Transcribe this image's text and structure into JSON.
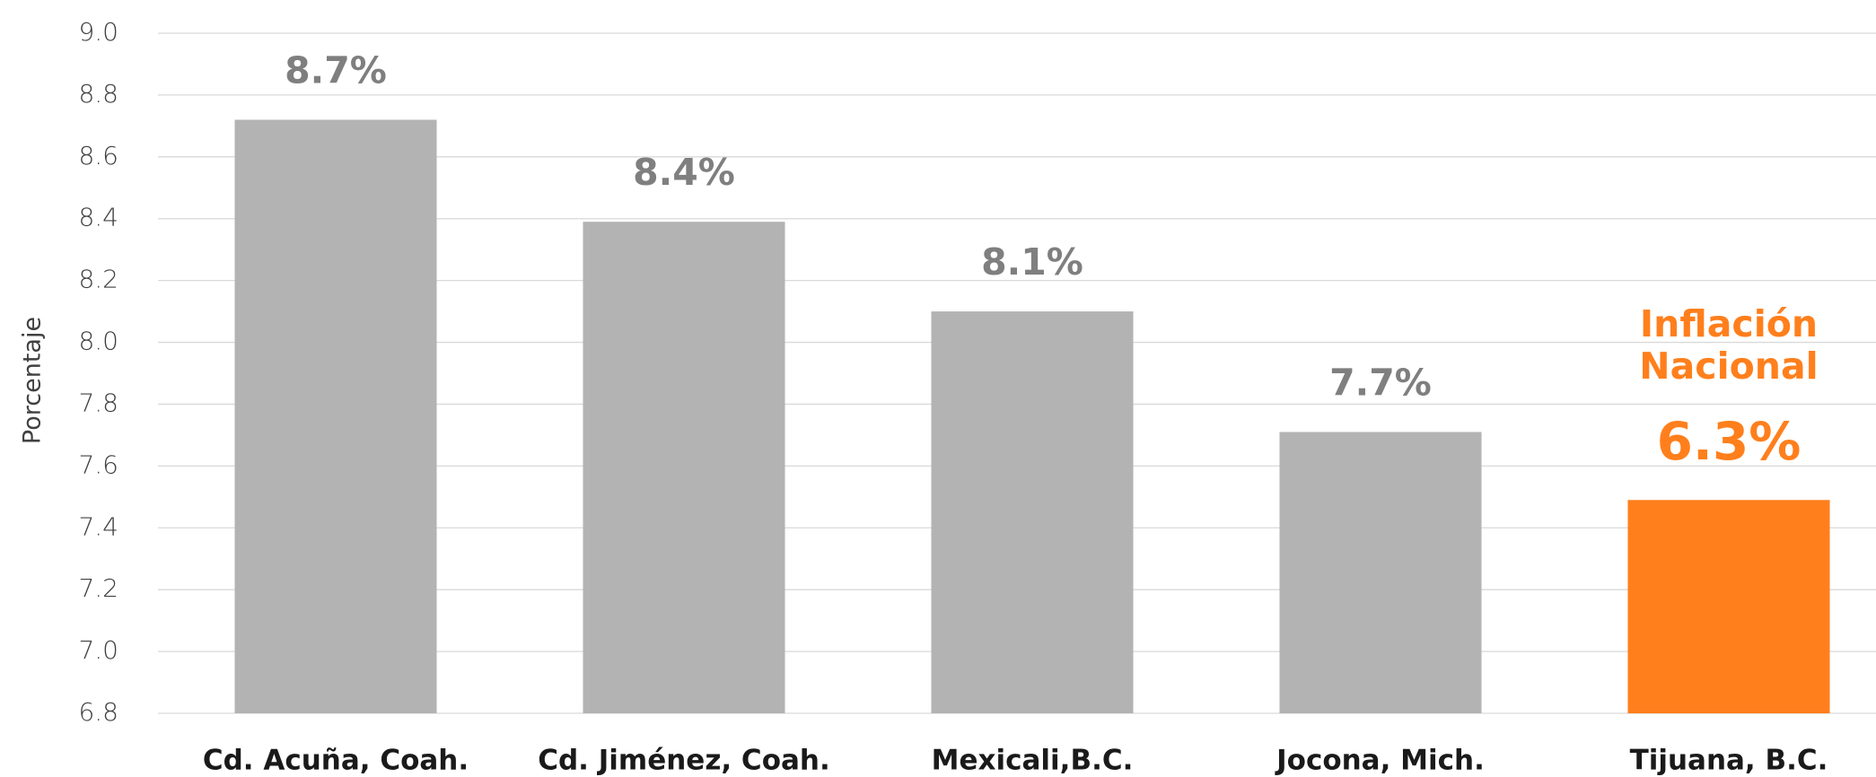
{
  "chart_data": {
    "type": "bar",
    "y_label": "Porcentaje",
    "categories": [
      "Cd. Acuña, Coah.",
      "Cd. Jiménez, Coah.",
      "Mexicali,B.C.",
      "Jocona, Mich.",
      "Tijuana, B.C."
    ],
    "values": [
      8.72,
      8.39,
      8.1,
      7.71,
      7.49
    ],
    "value_labels": [
      "8.7%",
      "8.4%",
      "8.1%",
      "7.7%",
      null
    ],
    "colors": [
      "#b3b3b3",
      "#b3b3b3",
      "#b3b3b3",
      "#b3b3b3",
      "#ff7f1c"
    ],
    "annotation": {
      "lines": [
        "Inflación",
        "Nacional"
      ],
      "text": "6.3%",
      "color": "#ff7f1c"
    },
    "ylim": [
      6.8,
      9.0
    ],
    "yticks": [
      6.8,
      {
        "value": 7,
        "label": "7.0"
      },
      7.2,
      7.4,
      7.6,
      7.8,
      {
        "value": 8,
        "label": "8.0"
      },
      8.2,
      8.4,
      8.6,
      8.8,
      {
        "value": 9,
        "label": "9.0"
      }
    ],
    "grid": true
  }
}
